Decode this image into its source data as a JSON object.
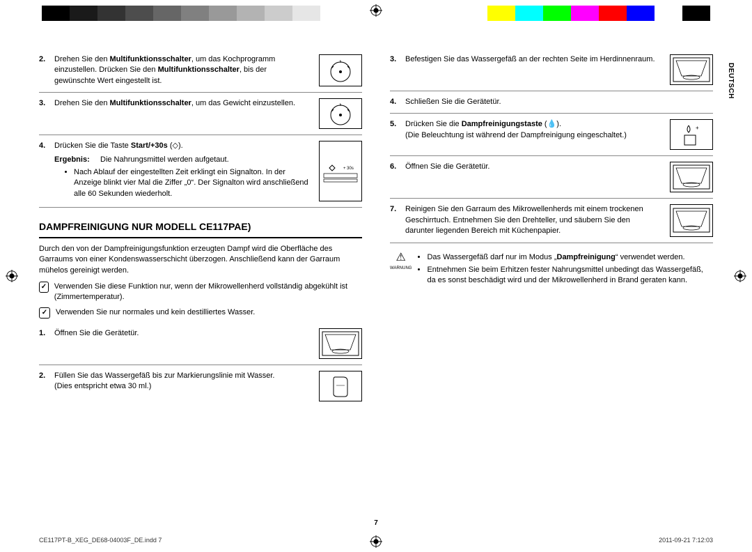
{
  "colorbar": [
    "#000000",
    "#1a1a1a",
    "#333333",
    "#4d4d4d",
    "#666666",
    "#808080",
    "#999999",
    "#b3b3b3",
    "#cccccc",
    "#e6e6e6",
    "#ffffff",
    "#ffffff",
    "#ffffff",
    "#ffffff",
    "#ffffff",
    "#ffffff",
    "#ffff00",
    "#00ffff",
    "#00ff00",
    "#ff00ff",
    "#ff0000",
    "#0000ff",
    "#ffffff",
    "#000000"
  ],
  "side_label": "DEUTSCH",
  "page_number": "7",
  "footer_left": "CE117PT-B_XEG_DE68-04003F_DE.indd   7",
  "footer_right": "2011-09-21   7:12:03",
  "left": {
    "items_top": [
      {
        "n": "2.",
        "html": "Drehen Sie den <b>Multifunktionsschalter</b>, um das Kochprogramm einzustellen. Drücken Sie den <b>Multifunktionsschalter</b>, bis der gewünschte Wert eingestellt ist.",
        "illus": "dial"
      },
      {
        "n": "3.",
        "html": "Drehen Sie den <b>Multifunktionsschalter</b>, um das Gewicht einzustellen.",
        "illus": "dial"
      },
      {
        "n": "4.",
        "html": "Drücken Sie die Taste <b>Start/+30s</b> (◇).",
        "illus": "start30",
        "ergebnis_label": "Ergebnis:",
        "ergebnis_text": "Die Nahrungsmittel werden aufgetaut.",
        "bullets": [
          "Nach Ablauf der eingestellten Zeit erklingt ein Signalton. In der Anzeige blinkt vier Mal die Ziffer „0“. Der Signalton wird anschließend alle 60 Sekunden wiederholt."
        ]
      }
    ],
    "section_title": "DAMPFREINIGUNG NUR MODELL CE117PAE)",
    "section_intro": "Durch den von der Dampfreinigungsfunktion erzeugten Dampf wird die Oberfläche des Garraums von einer Kondenswasserschicht überzogen. Anschließend kann der Garraum mühelos gereinigt werden.",
    "notes": [
      "Verwenden Sie diese Funktion nur, wenn der Mikrowellenherd vollständig abgekühlt ist (Zimmertemperatur).",
      "Verwenden Sie nur normales und kein destilliertes Wasser."
    ],
    "items_bottom": [
      {
        "n": "1.",
        "html": "Öffnen Sie die Gerätetür.",
        "illus": "oven"
      },
      {
        "n": "2.",
        "html": "Füllen Sie das Wassergefäß bis zur Markierungslinie mit Wasser.<br>(Dies entspricht etwa 30 ml.)",
        "illus": "cup"
      }
    ]
  },
  "right": {
    "items": [
      {
        "n": "3.",
        "html": "Befestigen Sie das Wassergefäß an der rechten Seite im Herdinnenraum.",
        "illus": "oven"
      },
      {
        "n": "4.",
        "html": "Schließen Sie die Gerätetür.",
        "illus": ""
      },
      {
        "n": "5.",
        "html": "Drücken Sie die <b>Dampfreinigungstaste</b> (💧).<br>(Die Beleuchtung ist während der Dampfreinigung eingeschaltet.)",
        "illus": "steam"
      },
      {
        "n": "6.",
        "html": "Öffnen Sie die Gerätetür.",
        "illus": "oven"
      },
      {
        "n": "7.",
        "html": "Reinigen Sie den Garraum des Mikrowellenherds mit einem trockenen Geschirrtuch. Entnehmen Sie den Drehteller, und säubern Sie den darunter liegenden Bereich mit Küchenpapier.",
        "illus": "oven"
      }
    ],
    "warn_label": "WARNUNG",
    "warn_bullets": [
      "Das Wassergefäß darf nur im Modus „<b>Dampfreinigung</b>“ verwendet werden.",
      "Entnehmen Sie beim Erhitzen fester Nahrungsmittel unbedingt das Wassergefäß, da es sonst beschädigt wird und der Mikrowellenherd in Brand geraten kann."
    ]
  }
}
